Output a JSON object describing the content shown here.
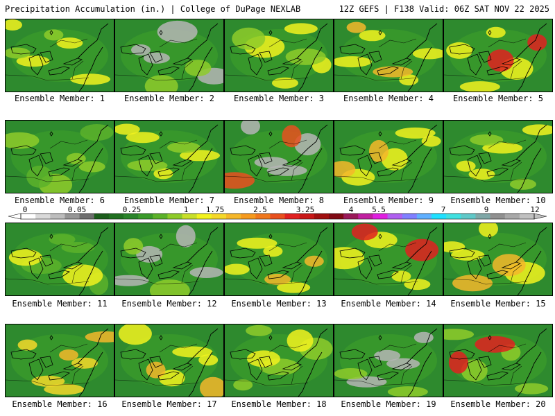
{
  "header": {
    "left_title": "Precipitation Accumulation (in.) | College of DuPage NEXLAB",
    "right_title": "12Z GEFS | F138 Valid: 06Z SAT NOV 22 2025"
  },
  "panels": [
    {
      "label": "Ensemble Member: 1"
    },
    {
      "label": "Ensemble Member: 2"
    },
    {
      "label": "Ensemble Member: 3"
    },
    {
      "label": "Ensemble Member: 4"
    },
    {
      "label": "Ensemble Member: 5"
    },
    {
      "label": "Ensemble Member: 6"
    },
    {
      "label": "Ensemble Member: 7"
    },
    {
      "label": "Ensemble Member: 8"
    },
    {
      "label": "Ensemble Member: 9"
    },
    {
      "label": "Ensemble Member: 10"
    },
    {
      "label": "Ensemble Member: 11"
    },
    {
      "label": "Ensemble Member: 12"
    },
    {
      "label": "Ensemble Member: 13"
    },
    {
      "label": "Ensemble Member: 14"
    },
    {
      "label": "Ensemble Member: 15"
    },
    {
      "label": "Ensemble Member: 16"
    },
    {
      "label": "Ensemble Member: 17"
    },
    {
      "label": "Ensemble Member: 18"
    },
    {
      "label": "Ensemble Member: 19"
    },
    {
      "label": "Ensemble Member: 20"
    }
  ],
  "colorbar": {
    "tick_labels": [
      "0",
      "0.05",
      "0.25",
      "1",
      "1.75",
      "2.5",
      "3.25",
      "4",
      "5.5",
      "7",
      "9",
      "12"
    ],
    "colors": [
      "#ffffff",
      "#d9d9d9",
      "#bdbdbd",
      "#969696",
      "#6e6e6e",
      "#1c5e1c",
      "#207020",
      "#2a842a",
      "#3a9a2a",
      "#5cb22a",
      "#8ecb2a",
      "#c8df2a",
      "#f2f21e",
      "#f5d82a",
      "#f5b72a",
      "#f59a1e",
      "#f0781e",
      "#e8501e",
      "#e02020",
      "#c81818",
      "#a01010",
      "#800a14",
      "#9a1a5a",
      "#c020a0",
      "#e020e0",
      "#b060f0",
      "#8080ff",
      "#60b0ff",
      "#20e0ff",
      "#40e0e0",
      "#60c8c8",
      "#80a8a8",
      "#909090",
      "#a8a8a8",
      "#c0c0c0"
    ]
  }
}
